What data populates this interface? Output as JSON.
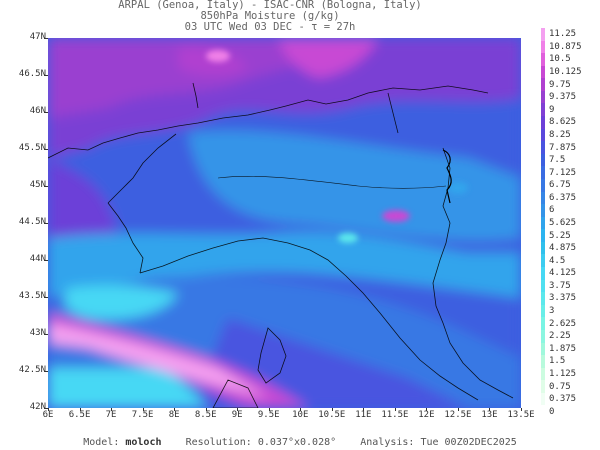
{
  "header": {
    "line1": "ARPAL (Genoa, Italy)  -  ISAC-CNR (Bologna, Italy)",
    "line2": "850hPa Moisture (g/kg)",
    "line3": "03 UTC Wed 03 DEC  -  τ = 27h"
  },
  "map": {
    "lat_labels": [
      "47N",
      "46.5N",
      "46N",
      "45.5N",
      "45N",
      "44.5N",
      "44N",
      "43.5N",
      "43N",
      "42.5N",
      "42N"
    ],
    "lon_labels": [
      "6E",
      "6.5E",
      "7E",
      "7.5E",
      "8E",
      "8.5E",
      "9E",
      "9.5E",
      "10E",
      "10.5E",
      "11E",
      "11.5E",
      "12E",
      "12.5E",
      "13E",
      "13.5E"
    ],
    "lat_range": [
      42,
      47
    ],
    "lon_range": [
      6,
      13.5
    ]
  },
  "colorbar": {
    "labels": [
      "11.25",
      "10.875",
      "10.5",
      "10.125",
      "9.75",
      "9.375",
      "9",
      "8.625",
      "8.25",
      "7.875",
      "7.5",
      "7.125",
      "6.75",
      "6.375",
      "6",
      "5.625",
      "5.25",
      "4.875",
      "4.5",
      "4.125",
      "3.75",
      "3.375",
      "3",
      "2.625",
      "2.25",
      "1.875",
      "1.5",
      "1.125",
      "0.75",
      "0.375",
      "0"
    ],
    "colors": [
      "#f4a0f0",
      "#f080e8",
      "#e060dc",
      "#c848d4",
      "#b040d0",
      "#9840d0",
      "#8040d4",
      "#6c40d8",
      "#5a48dc",
      "#4a54e0",
      "#3c5fe0",
      "#3a6ce2",
      "#3878e4",
      "#3686e6",
      "#3494e8",
      "#30a4ec",
      "#2cb4f0",
      "#30c0ec",
      "#3cccf0",
      "#46d8f4",
      "#50e0f0",
      "#5ce8ec",
      "#68eee8",
      "#78f4e4",
      "#8cf6e0",
      "#a0f8dc",
      "#b8fadc",
      "#ccfce0",
      "#e0fde8",
      "#f0fef4",
      "#ffffff"
    ]
  },
  "footer": {
    "model_label": "Model:",
    "model_value": "moloch",
    "resolution_label": "Resolution:",
    "resolution_value": "0.037°x0.028°",
    "analysis_label": "Analysis:",
    "analysis_value": "Tue 00Z02DEC2025"
  }
}
